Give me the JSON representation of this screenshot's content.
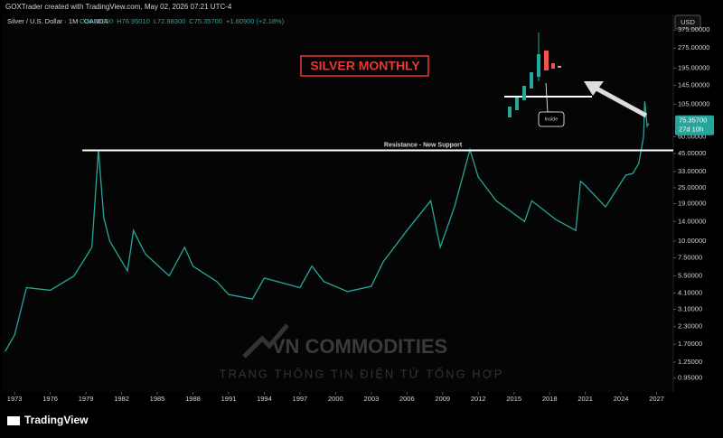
{
  "header": {
    "credit": "GOXTrader created with TradingView.com, May 02, 2026 07:21 UTC-4"
  },
  "chart_data": {
    "type": "line",
    "symbol": "Silver / U.S. Dollar · 1M · OANDA",
    "ohlc": [
      "O74.20000",
      "H76.95010",
      "L72.98300",
      "C75.35700",
      "+1.60900 (+2.18%)"
    ],
    "currency": "USD",
    "title": "SILVER MONTHLY",
    "log_scale": true,
    "series": [
      {
        "name": "Silver / U.S. Dollar",
        "color": "#26a69a",
        "x": [
          1972.2,
          1973,
          1974,
          1976,
          1978,
          1979.5,
          1980.05,
          1980.5,
          1981,
          1982.5,
          1983,
          1984,
          1986,
          1987.3,
          1988,
          1990,
          1991,
          1993,
          1994,
          1997,
          1998,
          1999,
          2001,
          2003,
          2004,
          2006,
          2008,
          2008.8,
          2010,
          2011.3,
          2012,
          2013.5,
          2015.9,
          2016.5,
          2018.5,
          2020.2,
          2020.6,
          2021,
          2022.7,
          2024.4,
          2025,
          2025.5,
          2025.9,
          2026.0,
          2026.2,
          2026.33
        ],
        "values": [
          1.5,
          2.0,
          4.5,
          4.3,
          5.5,
          9,
          48,
          15,
          10,
          6,
          12,
          8,
          5.5,
          9,
          6.5,
          5,
          4,
          3.7,
          5.3,
          4.5,
          6.5,
          5,
          4.2,
          4.6,
          7,
          12,
          20,
          9,
          18,
          48,
          30,
          20,
          14,
          20,
          14.5,
          12,
          28,
          26,
          18,
          31,
          32,
          38,
          60,
          110,
          72,
          75.357
        ]
      }
    ],
    "xlim": [
      1972,
      2028.4
    ],
    "xticks": [
      1973,
      1976,
      1979,
      1982,
      1985,
      1988,
      1991,
      1994,
      1997,
      2000,
      2003,
      2006,
      2009,
      2012,
      2015,
      2018,
      2021,
      2024,
      2027
    ],
    "ylim": [
      0.75,
      490
    ],
    "yticks": [
      {
        "value": 375,
        "label": "375.00000"
      },
      {
        "value": 275,
        "label": "275.00000"
      },
      {
        "value": 195,
        "label": "195.00000"
      },
      {
        "value": 145,
        "label": "145.00000"
      },
      {
        "value": 105,
        "label": "105.00000"
      },
      {
        "value": 60,
        "label": "60.00000"
      },
      {
        "value": 45,
        "label": "45.00000"
      },
      {
        "value": 33,
        "label": "33.00000"
      },
      {
        "value": 25,
        "label": "25.00000"
      },
      {
        "value": 19,
        "label": "19.00000"
      },
      {
        "value": 14,
        "label": "14.00000"
      },
      {
        "value": 10,
        "label": "10.00000"
      },
      {
        "value": 7.5,
        "label": "7.50000"
      },
      {
        "value": 5.5,
        "label": "5.50000"
      },
      {
        "value": 4.1,
        "label": "4.10000"
      },
      {
        "value": 3.1,
        "label": "3.10000"
      },
      {
        "value": 2.3,
        "label": "2.30000"
      },
      {
        "value": 1.7,
        "label": "1.70000"
      },
      {
        "value": 1.25,
        "label": "1.25000"
      },
      {
        "value": 0.95,
        "label": "0.95000"
      }
    ],
    "resistance": {
      "label": "Resistance - New Support",
      "value": 47.5,
      "from": 1978.7
    },
    "last_price": {
      "value": 75.357,
      "label": "75.35700",
      "countdown": "27d 10h"
    },
    "inset_note": "Inside"
  },
  "watermark": {
    "brand": "VN COMMODITIES",
    "tagline": "TRANG THÔNG TIN ĐIỆN TỬ TỔNG HỢP"
  },
  "footer": {
    "logo": "TradingView"
  }
}
